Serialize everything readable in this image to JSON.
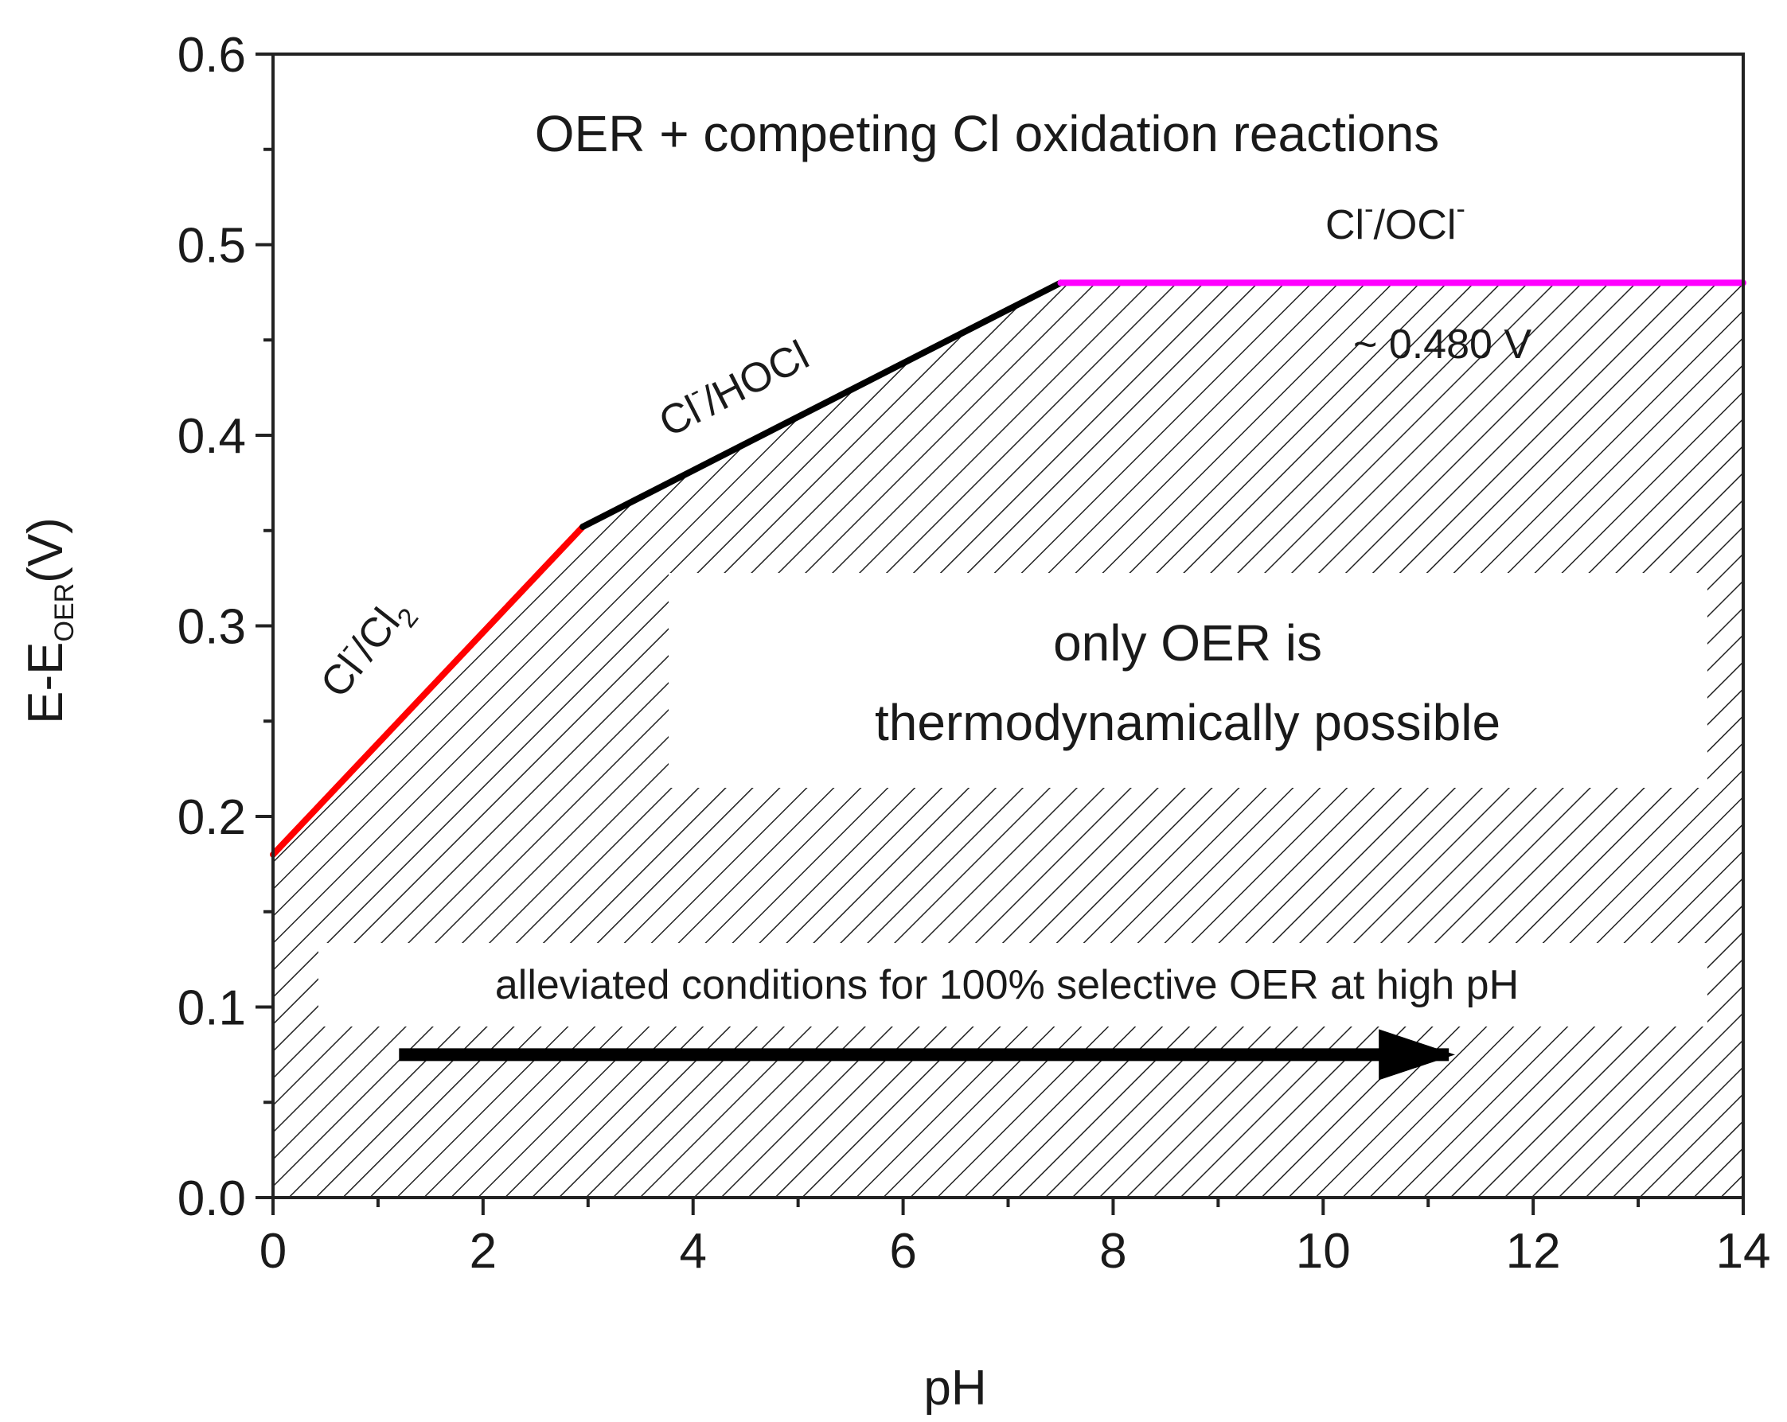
{
  "chart_data": {
    "type": "line",
    "xlabel": "pH",
    "ylabel": {
      "main": "E-E",
      "sub": "OER",
      "unit": "(V)"
    },
    "xlim": [
      0,
      14
    ],
    "ylim": [
      0,
      0.6
    ],
    "xticks": [
      "0",
      "2",
      "4",
      "6",
      "8",
      "10",
      "12",
      "14"
    ],
    "yticks": [
      "0.0",
      "0.1",
      "0.2",
      "0.3",
      "0.4",
      "0.5",
      "0.6"
    ],
    "grid": false,
    "series": [
      {
        "name": "Cl-/Cl2",
        "color": "#ff0000",
        "x": [
          0,
          2.95
        ],
        "y": [
          0.18,
          0.352
        ]
      },
      {
        "name": "Cl-/HOCl",
        "color": "#000000",
        "x": [
          2.95,
          7.5
        ],
        "y": [
          0.352,
          0.48
        ]
      },
      {
        "name": "Cl-/OCl-",
        "color": "#ff00ff",
        "x": [
          7.5,
          14
        ],
        "y": [
          0.48,
          0.48
        ]
      }
    ],
    "hatched_region": {
      "x": [
        0,
        2.95,
        7.5,
        14,
        14,
        0
      ],
      "y": [
        0.18,
        0.352,
        0.48,
        0.48,
        0,
        0
      ]
    },
    "annotations": {
      "top": "OER + competing Cl oxidation reactions",
      "cl_cl2": {
        "a": "Cl",
        "sup": "-",
        "b": "/Cl",
        "sub": "2"
      },
      "cl_hocl": {
        "a": "Cl",
        "sup": "-",
        "b": "/HOCl"
      },
      "cl_ocl": {
        "a": "Cl",
        "sup": "-",
        "b": "/OCl",
        "sup2": "-"
      },
      "threshold": "~ 0.480 V",
      "only_line1": "only OER is",
      "only_line2": "thermodynamically possible",
      "alleviated": "alleviated conditions for 100% selective OER at high pH"
    },
    "arrow": {
      "x": [
        1.2,
        11.5
      ],
      "y": 0.075
    }
  }
}
